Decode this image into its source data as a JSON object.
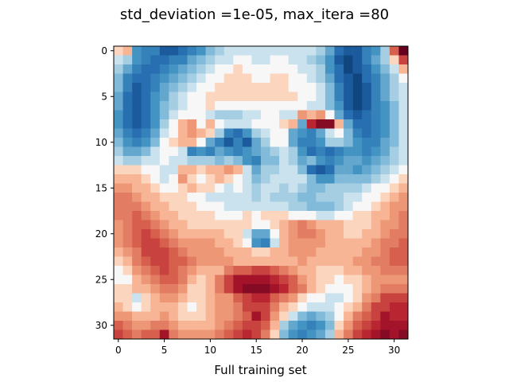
{
  "chart_data": {
    "type": "heatmap",
    "title": "std_deviation =1e-05, max_itera =80",
    "xlabel": "Full training set",
    "ylabel": "",
    "rows": 32,
    "cols": 32,
    "colormap": "RdBu_r",
    "value_range": [
      -1,
      1
    ],
    "x_ticks": [
      "0",
      "5",
      "10",
      "15",
      "20",
      "25",
      "30"
    ],
    "y_ticks": [
      "0",
      "5",
      "10",
      "15",
      "20",
      "25",
      "30"
    ],
    "x_tick_values": [
      0,
      5,
      10,
      15,
      20,
      25,
      30
    ],
    "y_tick_values": [
      0,
      5,
      10,
      15,
      20,
      25,
      30
    ],
    "legend": "none",
    "grid": false,
    "values": [
      [
        0.1,
        0.2,
        -0.5,
        -0.6,
        -0.6,
        -0.8,
        -0.8,
        -0.7,
        -0.6,
        -0.5,
        -0.3,
        -0.2,
        -0.1,
        -0.1,
        -0.1,
        -0.1,
        -0.1,
        -0.1,
        -0.1,
        -0.1,
        -0.1,
        -0.1,
        -0.2,
        -0.4,
        -0.7,
        -0.8,
        -0.8,
        -0.6,
        -0.5,
        -0.2,
        0.5,
        1.0
      ],
      [
        -0.1,
        -0.2,
        -0.5,
        -0.6,
        -0.7,
        -0.7,
        -0.6,
        -0.6,
        -0.4,
        -0.3,
        -0.2,
        -0.1,
        -0.1,
        0.0,
        0.0,
        -0.1,
        -0.1,
        0.0,
        0.0,
        -0.1,
        -0.1,
        -0.2,
        -0.3,
        -0.5,
        -0.8,
        -0.9,
        -0.8,
        -0.6,
        -0.4,
        -0.2,
        0.1,
        0.6
      ],
      [
        -0.2,
        -0.4,
        -0.6,
        -0.7,
        -0.7,
        -0.6,
        -0.5,
        -0.4,
        -0.3,
        -0.2,
        -0.1,
        0.0,
        0.0,
        0.1,
        0.0,
        0.0,
        0.0,
        0.0,
        0.0,
        0.0,
        -0.1,
        -0.1,
        -0.2,
        -0.5,
        -0.7,
        -0.9,
        -0.8,
        -0.7,
        -0.5,
        -0.3,
        -0.1,
        0.2
      ],
      [
        -0.3,
        -0.6,
        -0.7,
        -0.7,
        -0.6,
        -0.5,
        -0.4,
        -0.3,
        -0.2,
        -0.1,
        0.0,
        0.0,
        0.1,
        0.1,
        0.1,
        0.0,
        0.0,
        0.1,
        0.1,
        0.0,
        0.0,
        -0.1,
        -0.2,
        -0.4,
        -0.7,
        -0.8,
        -0.9,
        -0.7,
        -0.6,
        -0.4,
        -0.2,
        0.0
      ],
      [
        -0.3,
        -0.6,
        -0.8,
        -0.7,
        -0.6,
        -0.4,
        -0.3,
        -0.2,
        -0.1,
        0.0,
        0.0,
        0.1,
        0.1,
        0.1,
        0.1,
        0.1,
        0.1,
        0.1,
        0.1,
        0.0,
        0.0,
        0.0,
        -0.1,
        -0.3,
        -0.6,
        -0.8,
        -0.9,
        -0.8,
        -0.6,
        -0.4,
        -0.2,
        -0.1
      ],
      [
        -0.4,
        -0.7,
        -0.8,
        -0.7,
        -0.5,
        -0.4,
        -0.2,
        -0.1,
        0.0,
        0.0,
        0.1,
        0.1,
        0.1,
        0.1,
        0.1,
        0.1,
        0.1,
        0.1,
        0.1,
        0.1,
        0.0,
        0.0,
        -0.1,
        -0.3,
        -0.6,
        -0.8,
        -0.9,
        -0.8,
        -0.6,
        -0.4,
        -0.2,
        -0.1
      ],
      [
        -0.4,
        -0.7,
        -0.8,
        -0.7,
        -0.5,
        -0.3,
        -0.2,
        -0.1,
        0.0,
        0.0,
        0.1,
        0.0,
        0.0,
        0.0,
        0.0,
        0.0,
        0.0,
        0.0,
        0.0,
        0.0,
        0.0,
        -0.1,
        -0.1,
        -0.3,
        -0.5,
        -0.8,
        -0.9,
        -0.8,
        -0.6,
        -0.5,
        -0.3,
        -0.1
      ],
      [
        -0.5,
        -0.7,
        -0.8,
        -0.7,
        -0.5,
        -0.3,
        -0.1,
        0.0,
        0.0,
        0.0,
        -0.1,
        -0.2,
        -0.2,
        -0.2,
        -0.1,
        -0.1,
        0.0,
        0.0,
        -0.1,
        -0.1,
        0.3,
        0.2,
        0.3,
        0.0,
        -0.4,
        -0.7,
        -0.8,
        -0.7,
        -0.6,
        -0.5,
        -0.3,
        -0.1
      ],
      [
        -0.5,
        -0.7,
        -0.8,
        -0.7,
        -0.5,
        -0.2,
        0.0,
        0.2,
        0.3,
        0.0,
        0.2,
        0.0,
        -0.1,
        -0.1,
        -0.1,
        0.0,
        0.0,
        0.0,
        0.1,
        0.2,
        -0.4,
        0.7,
        0.9,
        0.9,
        0.2,
        -0.4,
        -0.7,
        -0.7,
        -0.6,
        -0.5,
        -0.3,
        -0.1
      ],
      [
        -0.4,
        -0.6,
        -0.7,
        -0.6,
        -0.4,
        -0.1,
        0.0,
        0.2,
        0.3,
        0.2,
        0.1,
        -0.2,
        -0.6,
        -0.7,
        -0.5,
        -0.2,
        -0.1,
        0.0,
        0.0,
        -0.4,
        -0.5,
        -0.6,
        -0.4,
        -0.1,
        0.0,
        -0.3,
        -0.6,
        -0.7,
        -0.6,
        -0.5,
        -0.3,
        -0.1
      ],
      [
        -0.3,
        -0.5,
        -0.6,
        -0.5,
        -0.3,
        0.0,
        0.1,
        0.2,
        0.2,
        0.0,
        -0.4,
        -0.6,
        -0.8,
        -0.6,
        -0.8,
        -0.4,
        -0.2,
        0.0,
        0.0,
        -0.4,
        -0.6,
        -0.6,
        -0.5,
        -0.2,
        -0.2,
        -0.3,
        -0.5,
        -0.6,
        -0.6,
        -0.4,
        -0.3,
        -0.1
      ],
      [
        -0.2,
        -0.4,
        -0.4,
        -0.3,
        -0.1,
        0.0,
        0.0,
        -0.1,
        -0.6,
        -0.5,
        -0.6,
        -0.4,
        -0.5,
        -0.6,
        -0.5,
        -0.4,
        -0.3,
        -0.2,
        -0.1,
        -0.2,
        -0.5,
        -0.7,
        -0.6,
        -0.7,
        -0.6,
        -0.5,
        -0.5,
        -0.6,
        -0.5,
        -0.4,
        -0.2,
        -0.1
      ],
      [
        -0.1,
        -0.2,
        -0.2,
        -0.1,
        -0.1,
        0.0,
        -0.1,
        -0.1,
        -0.2,
        -0.2,
        -0.2,
        -0.3,
        -0.2,
        -0.3,
        -0.5,
        -0.6,
        -0.3,
        -0.3,
        -0.1,
        -0.2,
        -0.4,
        -0.3,
        -0.5,
        -0.6,
        -0.5,
        -0.4,
        -0.4,
        -0.5,
        -0.4,
        -0.3,
        -0.2,
        -0.1
      ],
      [
        0.1,
        0.1,
        0.1,
        0.0,
        0.0,
        -0.1,
        -0.1,
        0.2,
        0.2,
        0.1,
        0.2,
        0.2,
        0.3,
        0.2,
        -0.1,
        -0.4,
        -0.2,
        -0.2,
        -0.1,
        -0.1,
        -0.3,
        -0.7,
        -0.8,
        -0.7,
        -0.4,
        -0.4,
        -0.5,
        -0.4,
        -0.3,
        -0.2,
        -0.1,
        0.0
      ],
      [
        0.2,
        0.2,
        0.2,
        0.1,
        0.0,
        -0.1,
        0.0,
        0.3,
        0.1,
        0.0,
        0.1,
        0.2,
        0.1,
        0.0,
        -0.1,
        -0.3,
        -0.2,
        -0.1,
        -0.1,
        -0.1,
        -0.1,
        -0.3,
        -0.5,
        -0.5,
        -0.3,
        -0.3,
        -0.3,
        -0.3,
        -0.2,
        -0.1,
        0.0,
        0.1
      ],
      [
        0.3,
        0.3,
        0.2,
        0.2,
        0.1,
        0.0,
        0.0,
        0.1,
        0.2,
        0.1,
        0.1,
        0.0,
        -0.1,
        0.0,
        -0.1,
        -0.2,
        -0.1,
        -0.1,
        -0.2,
        -0.1,
        -0.2,
        -0.3,
        -0.3,
        -0.2,
        -0.2,
        -0.2,
        -0.2,
        -0.1,
        0.0,
        0.0,
        0.1,
        0.2
      ],
      [
        0.4,
        0.4,
        0.3,
        0.2,
        0.2,
        0.1,
        0.1,
        0.1,
        0.0,
        0.0,
        -0.1,
        -0.1,
        -0.1,
        -0.1,
        -0.1,
        -0.2,
        -0.1,
        -0.2,
        -0.2,
        -0.2,
        -0.3,
        -0.3,
        -0.2,
        -0.2,
        -0.2,
        -0.1,
        -0.1,
        0.0,
        0.0,
        0.1,
        0.2,
        0.3
      ],
      [
        0.4,
        0.4,
        0.4,
        0.3,
        0.2,
        0.2,
        0.1,
        0.1,
        0.1,
        0.0,
        0.0,
        0.0,
        -0.1,
        -0.1,
        -0.1,
        -0.1,
        -0.1,
        -0.1,
        -0.1,
        -0.2,
        -0.2,
        -0.3,
        -0.3,
        -0.3,
        -0.2,
        -0.1,
        0.0,
        0.0,
        0.1,
        0.2,
        0.3,
        0.3
      ],
      [
        0.4,
        0.4,
        0.5,
        0.4,
        0.3,
        0.2,
        0.2,
        0.1,
        0.1,
        0.1,
        0.1,
        0.0,
        0.0,
        0.0,
        0.1,
        0.0,
        0.1,
        0.1,
        0.1,
        0.0,
        0.0,
        0.0,
        -0.1,
        -0.1,
        0.0,
        0.0,
        0.1,
        0.1,
        0.2,
        0.2,
        0.3,
        0.4
      ],
      [
        0.3,
        0.4,
        0.5,
        0.5,
        0.4,
        0.3,
        0.2,
        0.2,
        0.1,
        0.1,
        0.1,
        0.1,
        0.1,
        0.1,
        0.1,
        0.0,
        0.0,
        0.1,
        0.2,
        0.3,
        0.4,
        0.3,
        0.2,
        0.2,
        0.2,
        0.1,
        0.1,
        0.1,
        0.2,
        0.3,
        0.3,
        0.4
      ],
      [
        0.3,
        0.4,
        0.5,
        0.6,
        0.5,
        0.4,
        0.3,
        0.2,
        0.2,
        0.2,
        0.2,
        0.2,
        0.1,
        0.1,
        -0.1,
        -0.4,
        -0.4,
        0.0,
        0.2,
        0.3,
        0.4,
        0.4,
        0.3,
        0.2,
        0.2,
        0.1,
        0.1,
        0.2,
        0.2,
        0.3,
        0.4,
        0.4
      ],
      [
        0.3,
        0.4,
        0.5,
        0.6,
        0.6,
        0.5,
        0.4,
        0.3,
        0.3,
        0.3,
        0.3,
        0.2,
        0.2,
        0.1,
        0.0,
        -0.5,
        -0.6,
        -0.1,
        0.2,
        0.3,
        0.3,
        0.3,
        0.3,
        0.2,
        0.2,
        0.2,
        0.2,
        0.2,
        0.3,
        0.4,
        0.4,
        0.5
      ],
      [
        0.2,
        0.3,
        0.4,
        0.6,
        0.6,
        0.6,
        0.5,
        0.4,
        0.3,
        0.3,
        0.3,
        0.3,
        0.2,
        0.2,
        0.2,
        0.1,
        0.1,
        0.2,
        0.2,
        0.3,
        0.3,
        0.3,
        0.2,
        0.2,
        0.2,
        0.2,
        0.2,
        0.3,
        0.3,
        0.4,
        0.5,
        0.5
      ],
      [
        0.1,
        0.2,
        0.4,
        0.5,
        0.6,
        0.6,
        0.5,
        0.5,
        0.4,
        0.3,
        0.3,
        0.3,
        0.3,
        0.2,
        0.2,
        0.2,
        0.2,
        0.2,
        0.2,
        0.2,
        0.3,
        0.2,
        0.2,
        0.2,
        0.2,
        0.2,
        0.3,
        0.3,
        0.4,
        0.4,
        0.5,
        0.5
      ],
      [
        0.0,
        0.1,
        0.3,
        0.4,
        0.5,
        0.6,
        0.5,
        0.4,
        0.3,
        0.2,
        0.2,
        0.2,
        0.4,
        0.5,
        0.5,
        0.6,
        0.6,
        0.5,
        0.4,
        0.3,
        0.2,
        0.2,
        0.1,
        0.1,
        0.1,
        0.2,
        0.2,
        0.3,
        0.3,
        0.4,
        0.4,
        0.4
      ],
      [
        0.0,
        0.0,
        0.2,
        0.3,
        0.4,
        0.5,
        0.5,
        0.4,
        0.2,
        0.1,
        0.2,
        0.4,
        0.6,
        0.8,
        0.8,
        0.8,
        0.8,
        0.7,
        0.6,
        0.5,
        0.3,
        0.2,
        0.1,
        0.1,
        0.0,
        0.1,
        0.1,
        0.2,
        0.3,
        0.3,
        0.3,
        0.3
      ],
      [
        0.1,
        0.1,
        0.2,
        0.2,
        0.3,
        0.4,
        0.4,
        0.3,
        0.1,
        0.1,
        0.2,
        0.4,
        0.6,
        0.8,
        0.9,
        0.9,
        0.9,
        0.8,
        0.7,
        0.5,
        0.4,
        0.2,
        0.1,
        0.0,
        0.0,
        0.0,
        0.1,
        0.2,
        0.3,
        0.4,
        0.4,
        0.4
      ],
      [
        0.1,
        0.1,
        -0.1,
        0.1,
        0.2,
        0.3,
        0.3,
        0.2,
        0.1,
        0.1,
        0.2,
        0.3,
        0.3,
        0.5,
        0.6,
        0.7,
        0.7,
        0.5,
        0.4,
        0.3,
        0.1,
        0.0,
        0.0,
        -0.1,
        -0.1,
        0.0,
        0.1,
        0.3,
        0.4,
        0.6,
        0.6,
        0.6
      ],
      [
        0.2,
        0.1,
        0.0,
        0.1,
        0.2,
        0.2,
        0.2,
        0.1,
        0.0,
        0.1,
        0.2,
        0.3,
        0.3,
        0.4,
        0.6,
        0.6,
        0.6,
        0.4,
        0.2,
        0.1,
        0.0,
        -0.1,
        -0.1,
        -0.1,
        0.0,
        0.1,
        0.2,
        0.4,
        0.6,
        0.6,
        0.7,
        0.7
      ],
      [
        0.3,
        0.3,
        0.2,
        0.2,
        0.2,
        0.3,
        0.2,
        0.1,
        0.1,
        0.1,
        0.2,
        0.3,
        0.3,
        0.4,
        0.5,
        0.8,
        0.6,
        0.3,
        0.1,
        -0.1,
        -0.3,
        -0.4,
        -0.3,
        -0.2,
        0.0,
        0.2,
        0.4,
        0.5,
        0.6,
        0.8,
        0.7,
        0.7
      ],
      [
        0.5,
        0.4,
        0.3,
        0.3,
        0.4,
        0.4,
        0.3,
        0.2,
        0.2,
        0.2,
        0.2,
        0.3,
        0.4,
        0.5,
        0.6,
        0.6,
        0.5,
        0.2,
        -0.2,
        -0.4,
        -0.5,
        -0.6,
        -0.5,
        -0.3,
        0.1,
        0.3,
        0.5,
        0.6,
        0.7,
        0.8,
        0.8,
        0.8
      ],
      [
        0.6,
        0.5,
        0.4,
        0.5,
        0.5,
        0.8,
        0.4,
        0.3,
        0.3,
        0.3,
        0.3,
        0.4,
        0.5,
        0.6,
        0.7,
        0.6,
        0.4,
        0.1,
        -0.3,
        -0.5,
        -0.6,
        -0.5,
        -0.4,
        -0.2,
        0.2,
        0.4,
        0.6,
        0.7,
        0.8,
        0.9,
        0.8,
        0.9
      ]
    ]
  }
}
